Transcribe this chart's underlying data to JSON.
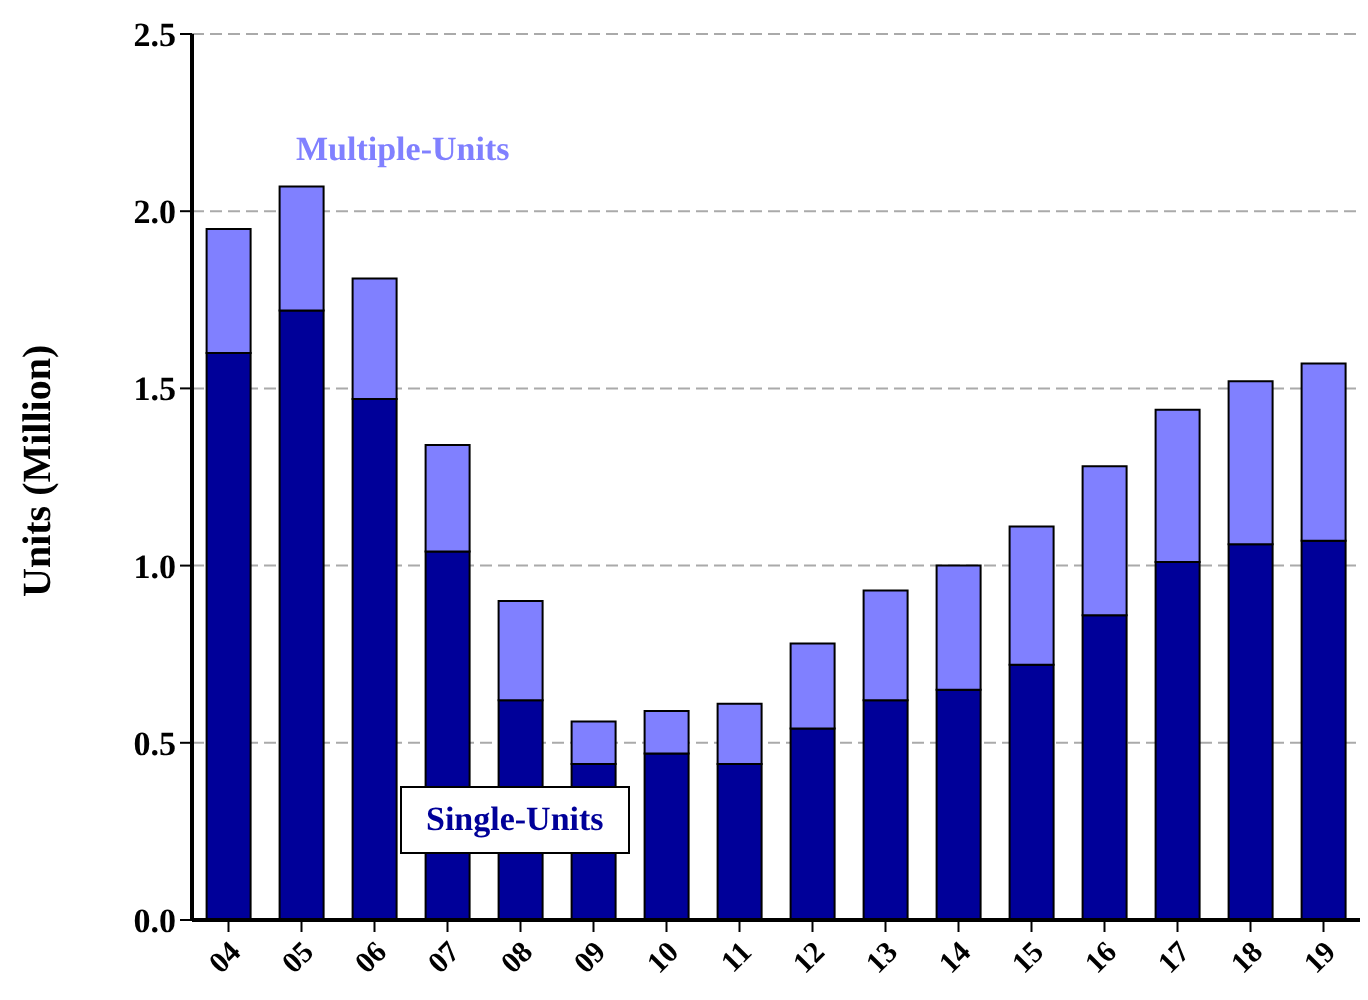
{
  "chart_data": {
    "type": "bar",
    "stacked": true,
    "ylabel": "Units (Million)",
    "categories": [
      "04",
      "05",
      "06",
      "07",
      "08",
      "09",
      "10",
      "11",
      "12",
      "13",
      "14",
      "15",
      "16",
      "17",
      "18",
      "19"
    ],
    "series": [
      {
        "name": "Single-Units",
        "color": "#000099",
        "values": [
          1.6,
          1.72,
          1.47,
          1.04,
          0.62,
          0.44,
          0.47,
          0.44,
          0.54,
          0.62,
          0.65,
          0.72,
          0.86,
          1.01,
          1.06,
          1.07
        ]
      },
      {
        "name": "Multiple-Units",
        "color": "#8080ff",
        "values": [
          0.35,
          0.35,
          0.34,
          0.3,
          0.28,
          0.12,
          0.12,
          0.17,
          0.24,
          0.31,
          0.35,
          0.39,
          0.42,
          0.43,
          0.46,
          0.5
        ]
      }
    ],
    "ylim": [
      0,
      2.5
    ],
    "yticks": [
      {
        "value": 0,
        "label": "0.0"
      },
      {
        "value": 0.5,
        "label": "0.5"
      },
      {
        "value": 1,
        "label": "1.0"
      },
      {
        "value": 1.5,
        "label": "1.5"
      },
      {
        "value": 2,
        "label": "2.0"
      },
      {
        "value": 2.5,
        "label": "2.5"
      }
    ],
    "grid": "y"
  }
}
